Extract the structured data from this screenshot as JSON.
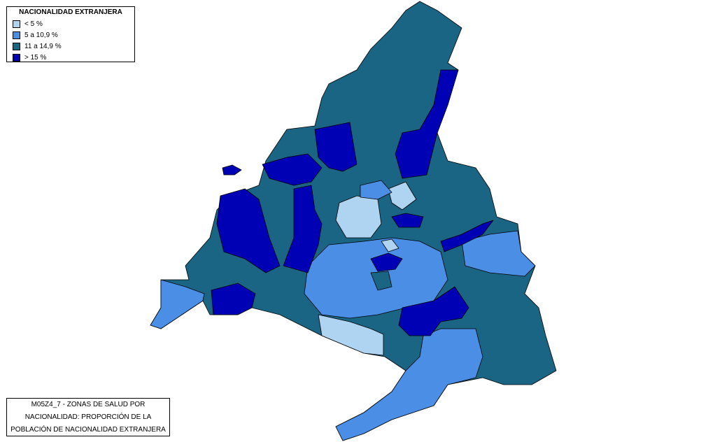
{
  "legend": {
    "title": "NACIONALIDAD EXTRANJERA",
    "items": [
      {
        "label": "< 5 %",
        "color": "#aed4f2"
      },
      {
        "label": "5 a 10,9 %",
        "color": "#4a8ee6"
      },
      {
        "label": "11 a 14,9 %",
        "color": "#1b6584"
      },
      {
        "label": "> 15 %",
        "color": "#0000b4"
      }
    ]
  },
  "caption": {
    "lines": [
      "M05Z4_7 - ZONAS DE SALUD POR",
      "NACIONALIDAD: PROPORCIÓN DE LA",
      "POBLACIÓN DE NACIONALIDAD EXTRANJERA"
    ]
  }
}
